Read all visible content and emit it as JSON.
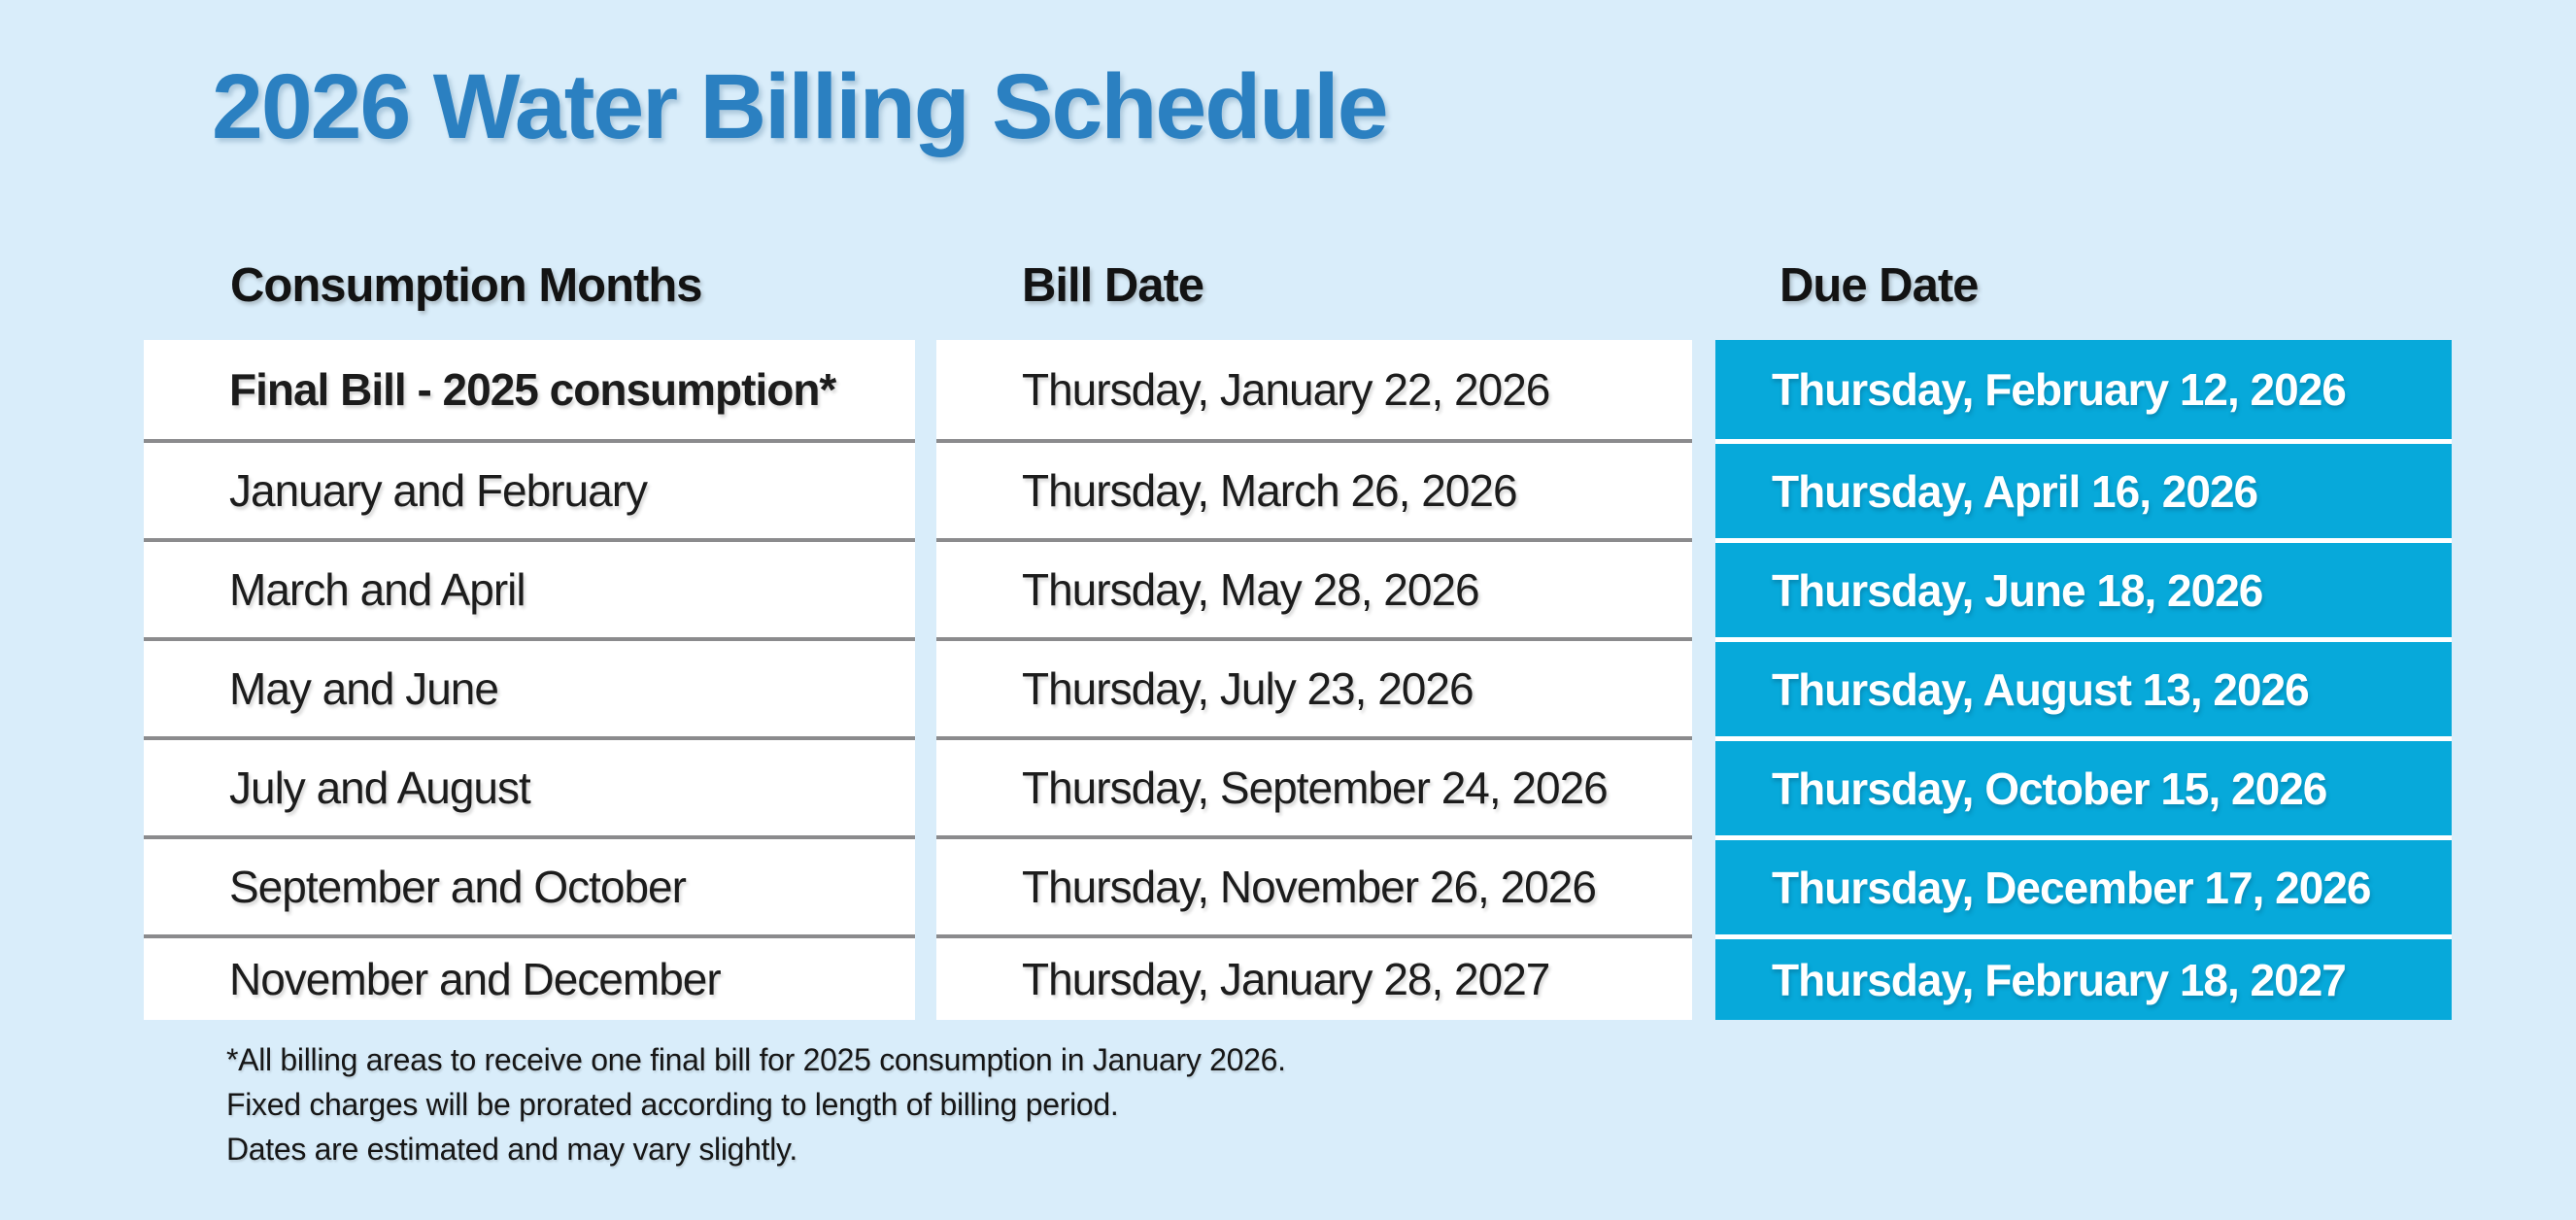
{
  "title": "2026 Water Billing Schedule",
  "colors": {
    "background": "#d9edfa",
    "title_blue": "#2b80c1",
    "due_date_fill": "#07a9da",
    "due_date_text": "#ffffff",
    "row_fill": "#ffffff",
    "row_separator_gray": "#8b8b8d",
    "body_text": "#1c1c1c"
  },
  "table": {
    "headers": [
      "Consumption Months",
      "Bill Date",
      "Due Date"
    ],
    "rows": [
      {
        "consumption": "Final Bill - 2025 consumption*",
        "bill_date": "Thursday, January 22, 2026",
        "due_date": "Thursday, February 12, 2026"
      },
      {
        "consumption": "January and February",
        "bill_date": "Thursday, March 26, 2026",
        "due_date": "Thursday, April 16, 2026"
      },
      {
        "consumption": "March and April",
        "bill_date": "Thursday, May 28, 2026",
        "due_date": "Thursday, June 18, 2026"
      },
      {
        "consumption": "May and June",
        "bill_date": "Thursday, July 23, 2026",
        "due_date": "Thursday, August 13, 2026"
      },
      {
        "consumption": "July and August",
        "bill_date": "Thursday, September 24, 2026",
        "due_date": "Thursday, October 15, 2026"
      },
      {
        "consumption": "September and October",
        "bill_date": "Thursday, November 26, 2026",
        "due_date": "Thursday, December 17, 2026"
      },
      {
        "consumption": "November and December",
        "bill_date": "Thursday, January 28, 2027",
        "due_date": "Thursday, February 18, 2027"
      }
    ]
  },
  "footnotes": [
    "*All billing areas to receive one final bill for 2025 consumption in January 2026.",
    "Fixed charges will be prorated according to length of billing period.",
    "Dates are estimated and may vary slightly."
  ]
}
